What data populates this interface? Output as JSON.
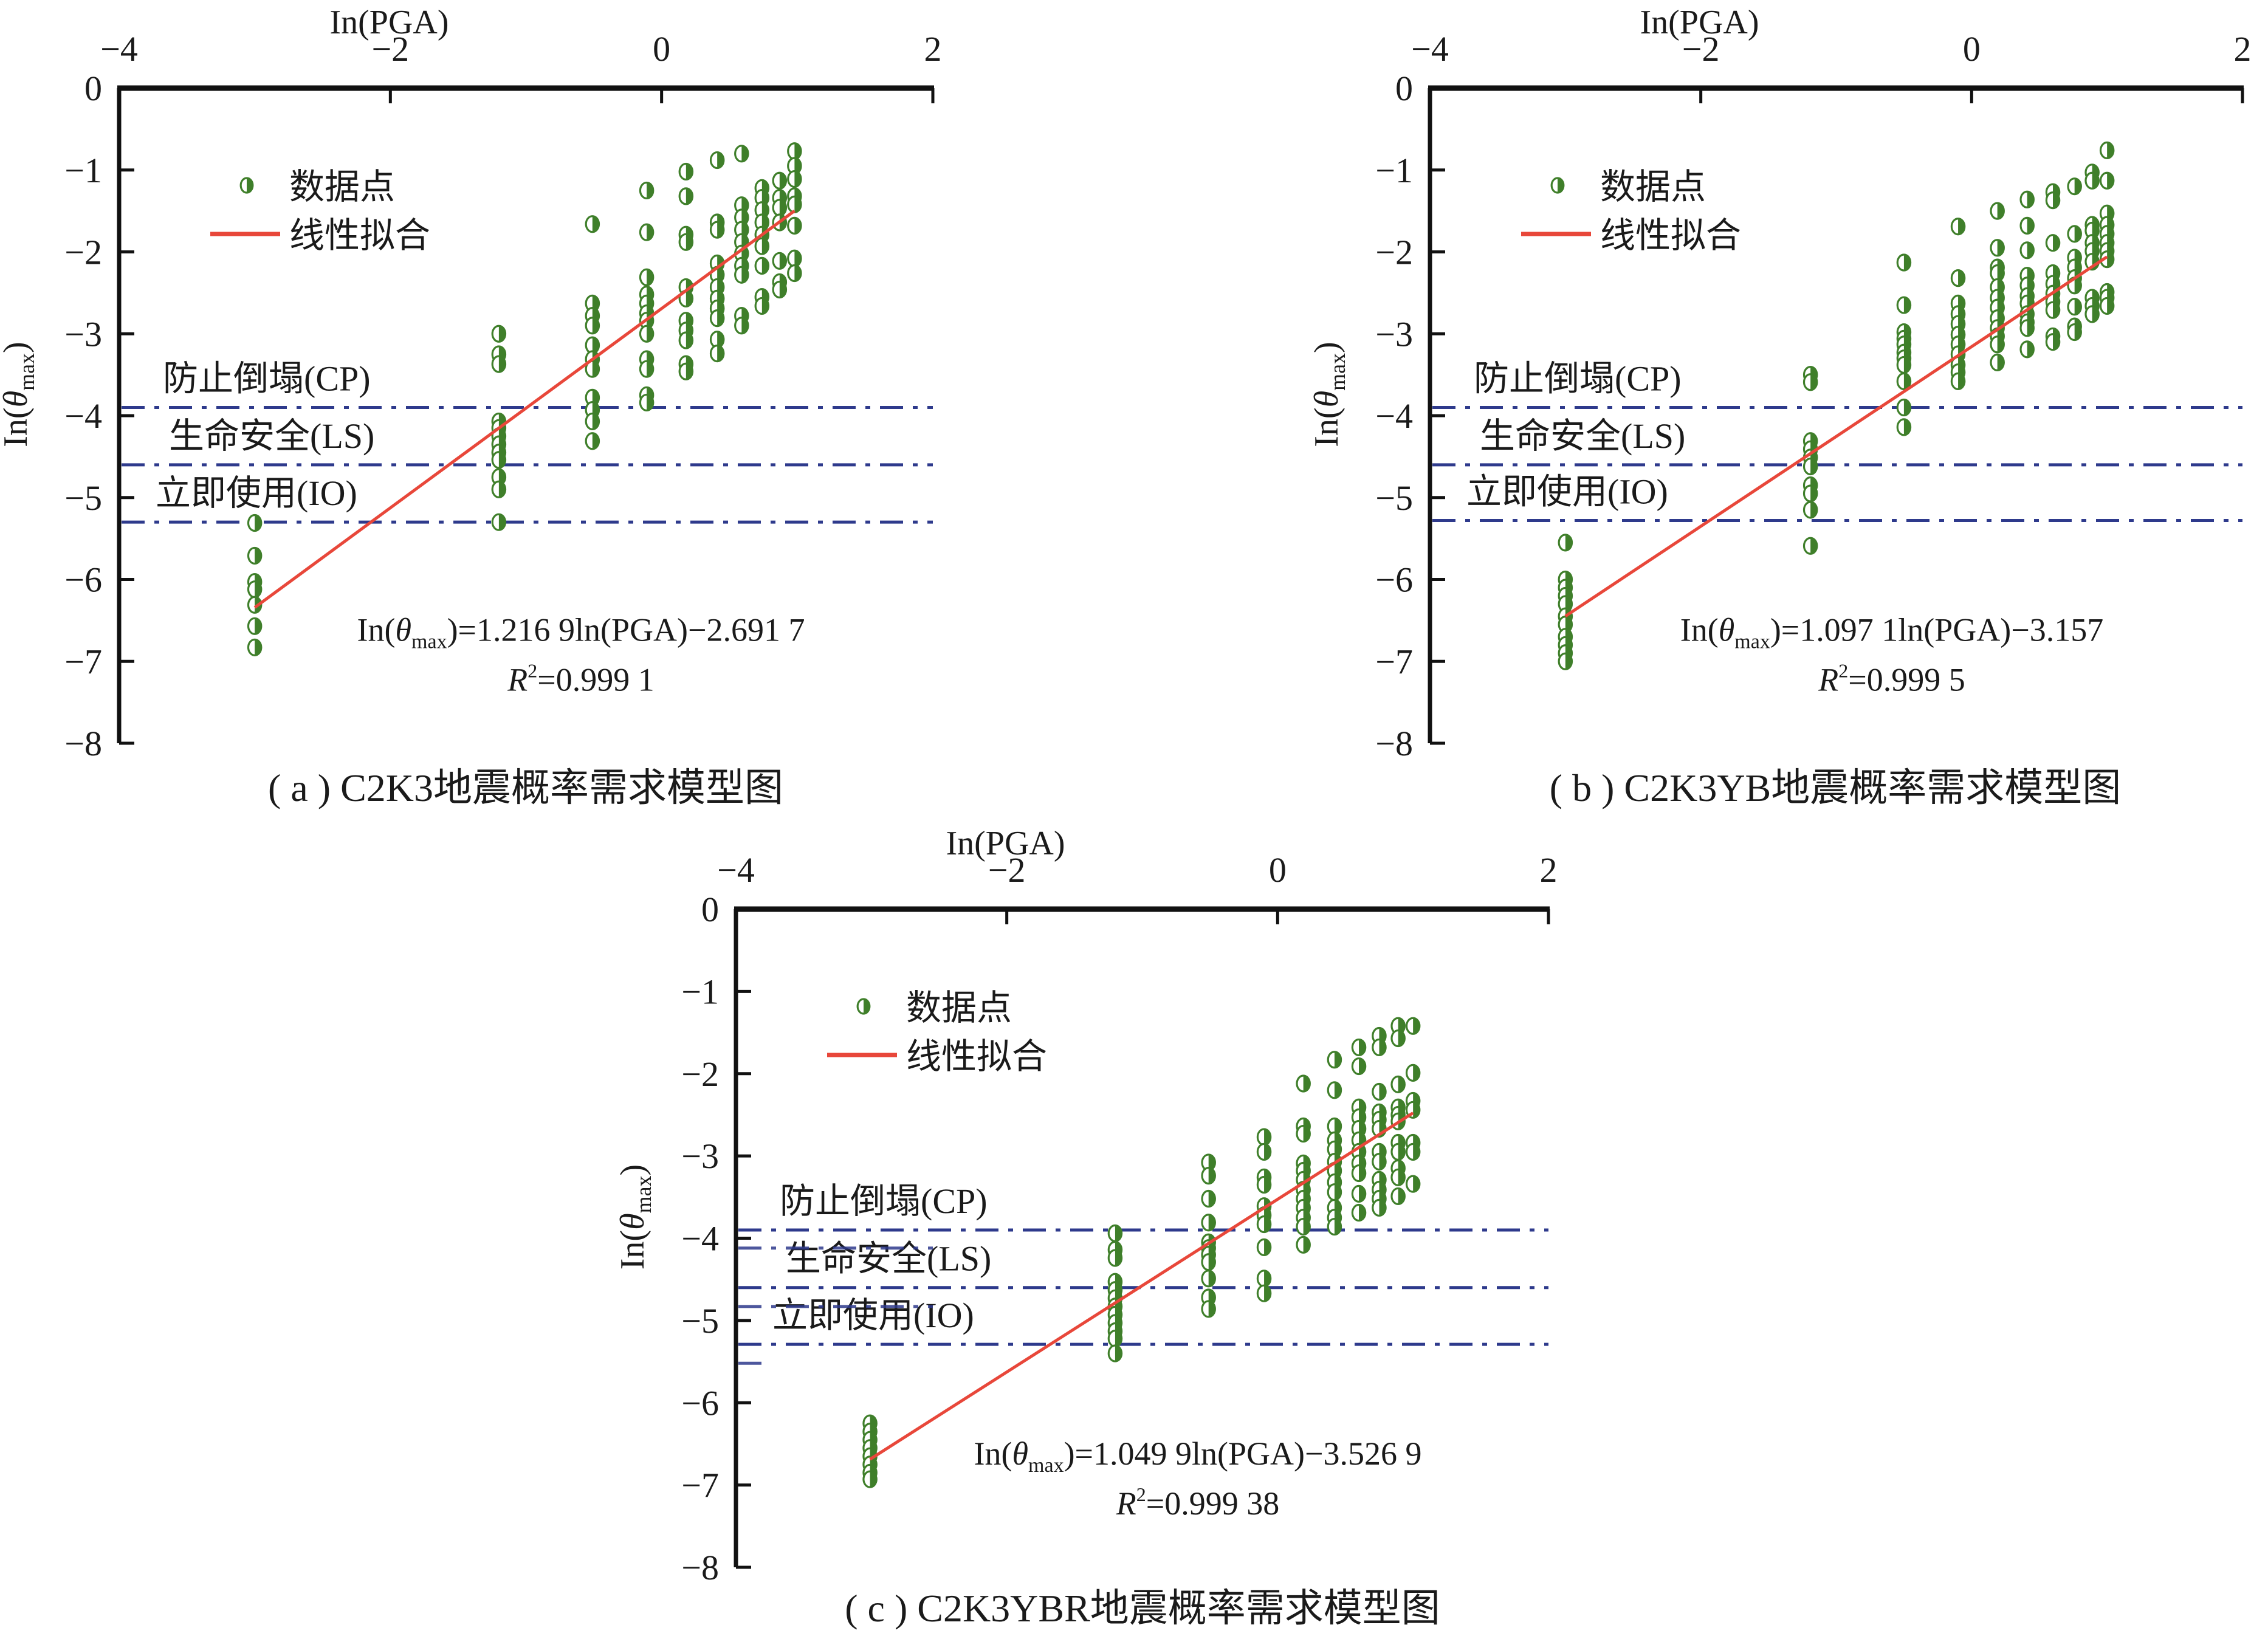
{
  "figure": {
    "point_color": "#3f7f2a",
    "fit_color": "#e8473a",
    "limit_line_color": "#2e3a8c"
  },
  "chart_data": [
    {
      "id": "a",
      "type": "scatter",
      "caption": "( a ) C2K3地震概率需求模型图",
      "xlabel": "In(PGA)",
      "ylabel": "In(θmax)",
      "xlim": [
        -4,
        2
      ],
      "ylim": [
        -8,
        0
      ],
      "xticks": [
        "−4",
        "−2",
        "0",
        "2"
      ],
      "yticks": [
        "0",
        "−1",
        "−2",
        "−3",
        "−4",
        "−5",
        "−6",
        "−7",
        "−8"
      ],
      "xaxis_position": "top",
      "grid": false,
      "legend": {
        "placement": "top-left",
        "points_label": "数据点",
        "fit_label": "线性拟合"
      },
      "limit_states": [
        {
          "label": "防止倒塌(CP)",
          "y": -3.9
        },
        {
          "label": "生命安全(LS)",
          "y": -4.6
        },
        {
          "label": "立即使用(IO)",
          "y": -5.3
        }
      ],
      "fit": {
        "slope": 1.2169,
        "intercept": -2.6917,
        "x_range": [
          -3.0,
          0.98
        ]
      },
      "equation": {
        "prefix": "In(θ",
        "sub": "max",
        "suffix": ")=1.216 9ln(PGA)−2.691 7",
        "r2_label": "R",
        "r2_value": "=0.999 1"
      },
      "series": [
        {
          "x": -3.0,
          "y": [
            -5.31,
            -5.71,
            -6.03,
            -6.12,
            -6.31,
            -6.57,
            -6.83
          ]
        },
        {
          "x": -1.2,
          "y": [
            -3.0,
            -3.25,
            -3.37,
            -4.07,
            -4.15,
            -4.25,
            -4.35,
            -4.45,
            -4.54,
            -4.75,
            -4.9,
            -5.3
          ]
        },
        {
          "x": -0.51,
          "y": [
            -1.66,
            -2.63,
            -2.78,
            -2.9,
            -3.14,
            -3.31,
            -3.43,
            -3.78,
            -3.93,
            -4.07,
            -4.31
          ]
        },
        {
          "x": -0.11,
          "y": [
            -1.25,
            -1.76,
            -2.31,
            -2.52,
            -2.63,
            -2.75,
            -2.84,
            -3.0,
            -3.31,
            -3.43,
            -3.75,
            -3.84
          ]
        },
        {
          "x": 0.18,
          "y": [
            -1.02,
            -1.32,
            -1.79,
            -1.88,
            -2.43,
            -2.57,
            -2.84,
            -2.96,
            -3.08,
            -3.37,
            -3.46
          ]
        },
        {
          "x": 0.41,
          "y": [
            -0.88,
            -1.64,
            -1.73,
            -2.14,
            -2.28,
            -2.43,
            -2.57,
            -2.69,
            -2.81,
            -3.07,
            -3.24
          ]
        },
        {
          "x": 0.59,
          "y": [
            -0.8,
            -1.43,
            -1.58,
            -1.73,
            -1.88,
            -2.02,
            -2.17,
            -2.28,
            -2.78,
            -2.9
          ]
        },
        {
          "x": 0.74,
          "y": [
            -1.22,
            -1.34,
            -1.49,
            -1.64,
            -1.79,
            -1.93,
            -2.17,
            -2.55,
            -2.66
          ]
        },
        {
          "x": 0.87,
          "y": [
            -1.13,
            -1.34,
            -1.46,
            -1.64,
            -2.11,
            -2.37,
            -2.46
          ]
        },
        {
          "x": 0.98,
          "y": [
            -0.77,
            -0.95,
            -1.11,
            -1.32,
            -1.42,
            -1.68,
            -2.08,
            -2.26
          ]
        }
      ]
    },
    {
      "id": "b",
      "type": "scatter",
      "caption": "( b ) C2K3YB地震概率需求模型图",
      "xlabel": "In(PGA)",
      "ylabel": "In(θmax)",
      "xlim": [
        -4,
        2
      ],
      "ylim": [
        -8,
        0
      ],
      "xticks": [
        "−4",
        "−2",
        "0",
        "2"
      ],
      "yticks": [
        "0",
        "−1",
        "−2",
        "−3",
        "−4",
        "−5",
        "−6",
        "−7",
        "−8"
      ],
      "xaxis_position": "top",
      "grid": false,
      "legend": {
        "placement": "top-left",
        "points_label": "数据点",
        "fit_label": "线性拟合"
      },
      "limit_states": [
        {
          "label": "防止倒塌(CP)",
          "y": -3.9
        },
        {
          "label": "生命安全(LS)",
          "y": -4.6
        },
        {
          "label": "立即使用(IO)",
          "y": -5.28
        }
      ],
      "fit": {
        "slope": 1.0971,
        "intercept": -3.157,
        "x_range": [
          -3.0,
          1.0
        ]
      },
      "equation": {
        "prefix": "In(θ",
        "sub": "max",
        "suffix": ")=1.097 1ln(PGA)−3.157",
        "r2_label": "R",
        "r2_value": "=0.999 5"
      },
      "series": [
        {
          "x": -3.0,
          "y": [
            -5.55,
            -6.0,
            -6.1,
            -6.2,
            -6.3,
            -6.45,
            -6.55,
            -6.7,
            -6.8,
            -6.9,
            -7.0
          ]
        },
        {
          "x": -1.19,
          "y": [
            -3.5,
            -3.59,
            -4.31,
            -4.41,
            -4.51,
            -4.62,
            -4.85,
            -4.95,
            -5.15,
            -5.59
          ]
        },
        {
          "x": -0.5,
          "y": [
            -2.13,
            -2.65,
            -2.98,
            -3.06,
            -3.13,
            -3.23,
            -3.3,
            -3.38,
            -3.58,
            -3.9,
            -4.14
          ]
        },
        {
          "x": -0.1,
          "y": [
            -1.69,
            -2.32,
            -2.63,
            -2.76,
            -2.88,
            -3.01,
            -3.13,
            -3.25,
            -3.38,
            -3.47,
            -3.58
          ]
        },
        {
          "x": 0.19,
          "y": [
            -1.5,
            -1.95,
            -2.19,
            -2.26,
            -2.43,
            -2.56,
            -2.68,
            -2.81,
            -2.93,
            -3.03,
            -3.13,
            -3.35
          ]
        },
        {
          "x": 0.41,
          "y": [
            -1.36,
            -1.68,
            -1.98,
            -2.29,
            -2.41,
            -2.54,
            -2.63,
            -2.76,
            -2.86,
            -2.93,
            -3.19
          ]
        },
        {
          "x": 0.6,
          "y": [
            -1.27,
            -1.37,
            -1.89,
            -2.26,
            -2.39,
            -2.51,
            -2.61,
            -2.71,
            -3.03,
            -3.1
          ]
        },
        {
          "x": 0.76,
          "y": [
            -1.2,
            -1.78,
            -2.07,
            -2.19,
            -2.32,
            -2.41,
            -2.67,
            -2.91,
            -2.98
          ]
        },
        {
          "x": 0.89,
          "y": [
            -1.03,
            -1.13,
            -1.67,
            -1.74,
            -1.89,
            -1.99,
            -2.12,
            -2.56,
            -2.66,
            -2.76
          ]
        },
        {
          "x": 1.0,
          "y": [
            -0.76,
            -1.13,
            -1.53,
            -1.67,
            -1.78,
            -1.89,
            -1.99,
            -2.09,
            -2.49,
            -2.56,
            -2.66
          ]
        }
      ]
    },
    {
      "id": "c",
      "type": "scatter",
      "caption": "( c ) C2K3YBR地震概率需求模型图",
      "xlabel": "In(PGA)",
      "ylabel": "In(θmax)",
      "xlim": [
        -4,
        2
      ],
      "ylim": [
        -8,
        0
      ],
      "xticks": [
        "−4",
        "−2",
        "0",
        "2"
      ],
      "yticks": [
        "0",
        "−1",
        "−2",
        "−3",
        "−4",
        "−5",
        "−6",
        "−7",
        "−8"
      ],
      "xaxis_position": "top",
      "grid": false,
      "legend": {
        "placement": "top-left",
        "points_label": "数据点",
        "fit_label": "线性拟合"
      },
      "limit_states": [
        {
          "label": "防止倒塌(CP)",
          "y": -3.9
        },
        {
          "label": "生命安全(LS)",
          "y": -4.6
        },
        {
          "label": "立即使用(IO)",
          "y": -5.29
        }
      ],
      "extra_dashes": [
        -4.12,
        -4.83,
        -5.52
      ],
      "fit": {
        "slope": 1.0499,
        "intercept": -3.5269,
        "x_range": [
          -3.01,
          1.0
        ]
      },
      "equation": {
        "prefix": "In(θ",
        "sub": "max",
        "suffix": ")=1.049 9ln(PGA)−3.526 9",
        "r2_label": "R",
        "r2_value": "=0.999 38"
      },
      "series": [
        {
          "x": -3.01,
          "y": [
            -6.25,
            -6.35,
            -6.45,
            -6.55,
            -6.65,
            -6.75,
            -6.85,
            -6.93
          ]
        },
        {
          "x": -1.2,
          "y": [
            -3.94,
            -4.14,
            -4.24,
            -4.53,
            -4.63,
            -4.73,
            -4.83,
            -4.93,
            -5.03,
            -5.13,
            -5.22,
            -5.4
          ]
        },
        {
          "x": -0.51,
          "y": [
            -3.08,
            -3.24,
            -3.52,
            -3.81,
            -4.05,
            -4.12,
            -4.2,
            -4.29,
            -4.49,
            -4.72,
            -4.86
          ]
        },
        {
          "x": -0.1,
          "y": [
            -2.77,
            -2.95,
            -3.26,
            -3.35,
            -3.61,
            -3.72,
            -3.83,
            -4.11,
            -4.49,
            -4.67
          ]
        },
        {
          "x": 0.19,
          "y": [
            -2.12,
            -2.64,
            -2.73,
            -3.09,
            -3.18,
            -3.29,
            -3.41,
            -3.52,
            -3.63,
            -3.75,
            -3.86,
            -4.08
          ]
        },
        {
          "x": 0.42,
          "y": [
            -1.83,
            -2.2,
            -2.64,
            -2.81,
            -2.92,
            -3.07,
            -3.18,
            -3.32,
            -3.44,
            -3.63,
            -3.75,
            -3.86
          ]
        },
        {
          "x": 0.6,
          "y": [
            -1.68,
            -1.91,
            -2.41,
            -2.53,
            -2.67,
            -2.81,
            -2.95,
            -3.09,
            -3.21,
            -3.46,
            -3.69
          ]
        },
        {
          "x": 0.75,
          "y": [
            -1.54,
            -1.68,
            -2.22,
            -2.47,
            -2.56,
            -2.67,
            -2.95,
            -3.07,
            -3.29,
            -3.41,
            -3.52,
            -3.63
          ]
        },
        {
          "x": 0.89,
          "y": [
            -1.42,
            -1.57,
            -2.13,
            -2.41,
            -2.5,
            -2.58,
            -2.84,
            -2.95,
            -3.15,
            -3.26,
            -3.49
          ]
        },
        {
          "x": 1.0,
          "y": [
            -1.42,
            -1.99,
            -2.33,
            -2.44,
            -2.84,
            -2.95,
            -3.34
          ]
        }
      ]
    }
  ]
}
